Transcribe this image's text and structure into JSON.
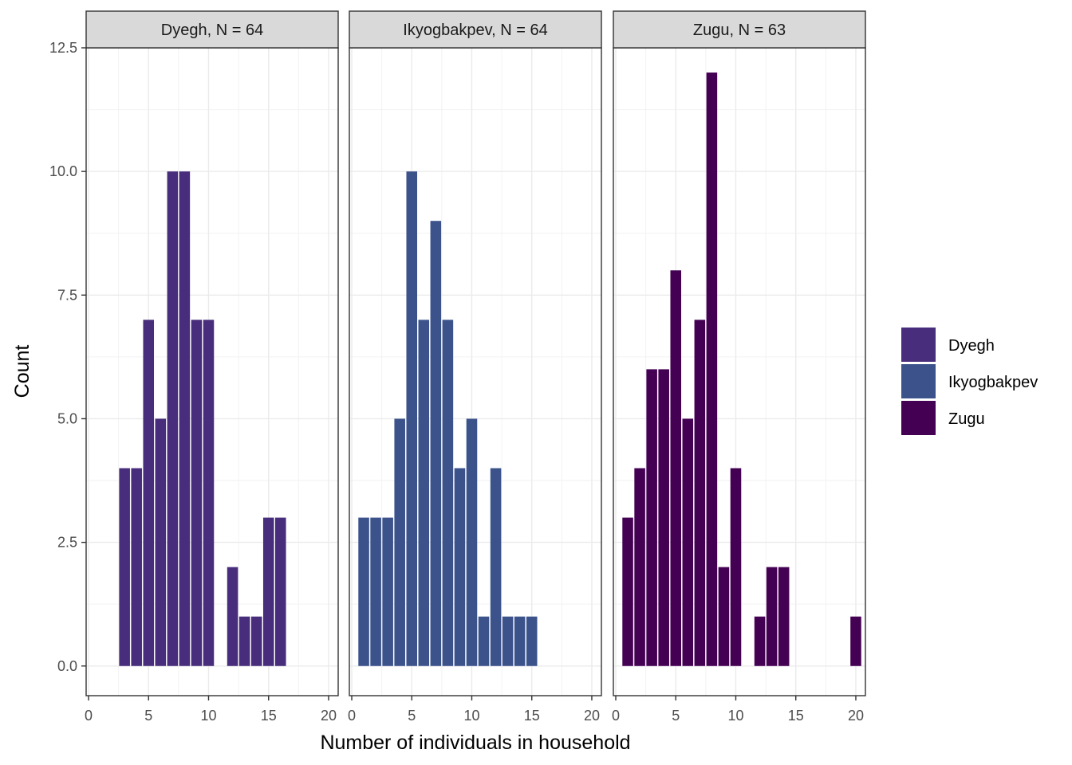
{
  "chart_data": {
    "type": "bar",
    "xlabel": "Number of individuals in household",
    "ylabel": "Count",
    "xlim": [
      -0.2,
      20.8
    ],
    "ylim": [
      -0.6,
      12.5
    ],
    "x_ticks": [
      "0",
      "5",
      "10",
      "15",
      "20"
    ],
    "y_ticks": [
      "0.0",
      "2.5",
      "5.0",
      "7.5",
      "10.0",
      "12.5"
    ],
    "grid": true,
    "legend_position": "right",
    "panels": [
      {
        "name": "Dyegh",
        "strip_label": "Dyegh, N = 64",
        "color": "#472d7b",
        "bars": [
          {
            "x": 3,
            "y": 4
          },
          {
            "x": 4,
            "y": 4
          },
          {
            "x": 5,
            "y": 7
          },
          {
            "x": 6,
            "y": 5
          },
          {
            "x": 7,
            "y": 10
          },
          {
            "x": 8,
            "y": 10
          },
          {
            "x": 9,
            "y": 7
          },
          {
            "x": 10,
            "y": 7
          },
          {
            "x": 12,
            "y": 2
          },
          {
            "x": 13,
            "y": 1
          },
          {
            "x": 14,
            "y": 1
          },
          {
            "x": 15,
            "y": 3
          },
          {
            "x": 16,
            "y": 3
          }
        ]
      },
      {
        "name": "Ikyogbakpev",
        "strip_label": "Ikyogbakpev, N = 64",
        "color": "#3b528b",
        "bars": [
          {
            "x": 1,
            "y": 3
          },
          {
            "x": 2,
            "y": 3
          },
          {
            "x": 3,
            "y": 3
          },
          {
            "x": 4,
            "y": 5
          },
          {
            "x": 5,
            "y": 10
          },
          {
            "x": 6,
            "y": 7
          },
          {
            "x": 7,
            "y": 9
          },
          {
            "x": 8,
            "y": 7
          },
          {
            "x": 9,
            "y": 4
          },
          {
            "x": 10,
            "y": 5
          },
          {
            "x": 11,
            "y": 1
          },
          {
            "x": 12,
            "y": 4
          },
          {
            "x": 13,
            "y": 1
          },
          {
            "x": 14,
            "y": 1
          },
          {
            "x": 15,
            "y": 1
          }
        ]
      },
      {
        "name": "Zugu",
        "strip_label": "Zugu, N = 63",
        "color": "#440154",
        "bars": [
          {
            "x": 1,
            "y": 3
          },
          {
            "x": 2,
            "y": 4
          },
          {
            "x": 3,
            "y": 6
          },
          {
            "x": 4,
            "y": 6
          },
          {
            "x": 5,
            "y": 8
          },
          {
            "x": 6,
            "y": 5
          },
          {
            "x": 7,
            "y": 7
          },
          {
            "x": 8,
            "y": 12
          },
          {
            "x": 9,
            "y": 2
          },
          {
            "x": 10,
            "y": 4
          },
          {
            "x": 12,
            "y": 1
          },
          {
            "x": 13,
            "y": 2
          },
          {
            "x": 14,
            "y": 2
          },
          {
            "x": 20,
            "y": 1
          }
        ]
      }
    ],
    "legend": [
      {
        "label": "Dyegh",
        "color": "#472d7b"
      },
      {
        "label": "Ikyogbakpev",
        "color": "#3b528b"
      },
      {
        "label": "Zugu",
        "color": "#440154"
      }
    ]
  }
}
